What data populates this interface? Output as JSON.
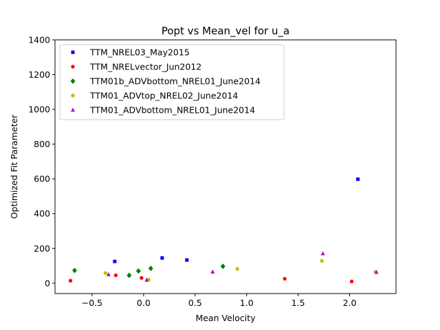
{
  "chart_data": {
    "type": "scatter",
    "title": "Popt vs Mean_vel for u_a",
    "xlabel": "Mean Velocity",
    "ylabel": "Optimized Fit Parameter",
    "xlim": [
      -0.86,
      2.45
    ],
    "ylim": [
      -60,
      1400
    ],
    "xticks": [
      -0.5,
      0.0,
      0.5,
      1.0,
      1.5,
      2.0
    ],
    "xtick_labels": [
      "−0.5",
      "0.0",
      "0.5",
      "1.0",
      "1.5",
      "2.0"
    ],
    "yticks": [
      0,
      200,
      400,
      600,
      800,
      1000,
      1200,
      1400
    ],
    "ytick_labels": [
      "0",
      "200",
      "400",
      "600",
      "800",
      "1000",
      "1200",
      "1400"
    ],
    "grid": false,
    "legend_position": "top-left",
    "series": [
      {
        "name": "TTM_NREL03_May2015",
        "marker": "square",
        "color": "#0000ff",
        "x": [
          -0.28,
          0.18,
          0.42,
          2.08
        ],
        "y": [
          125,
          145,
          133,
          598
        ]
      },
      {
        "name": "TTM_NRELvector_Jun2012",
        "marker": "circle",
        "color": "#ff0000",
        "x": [
          -0.71,
          -0.27,
          -0.02,
          1.37,
          2.02
        ],
        "y": [
          14,
          45,
          30,
          25,
          10
        ]
      },
      {
        "name": "TTM01b_ADVbottom_NREL01_June2014",
        "marker": "diamond",
        "color": "#008000",
        "x": [
          -0.67,
          -0.14,
          -0.05,
          0.07,
          0.77
        ],
        "y": [
          73,
          45,
          70,
          85,
          97
        ]
      },
      {
        "name": "TTM01_ADVtop_NREL02_June2014",
        "marker": "circle",
        "color": "#bfbf00",
        "x": [
          -0.37,
          0.05,
          0.91,
          1.73,
          2.25
        ],
        "y": [
          58,
          20,
          82,
          128,
          65
        ]
      },
      {
        "name": "TTM01_ADVbottom_NREL01_June2014",
        "marker": "triangle",
        "color": "#bf00bf",
        "x": [
          -0.34,
          0.03,
          0.67,
          1.74,
          2.26
        ],
        "y": [
          50,
          18,
          65,
          170,
          63
        ]
      }
    ]
  }
}
